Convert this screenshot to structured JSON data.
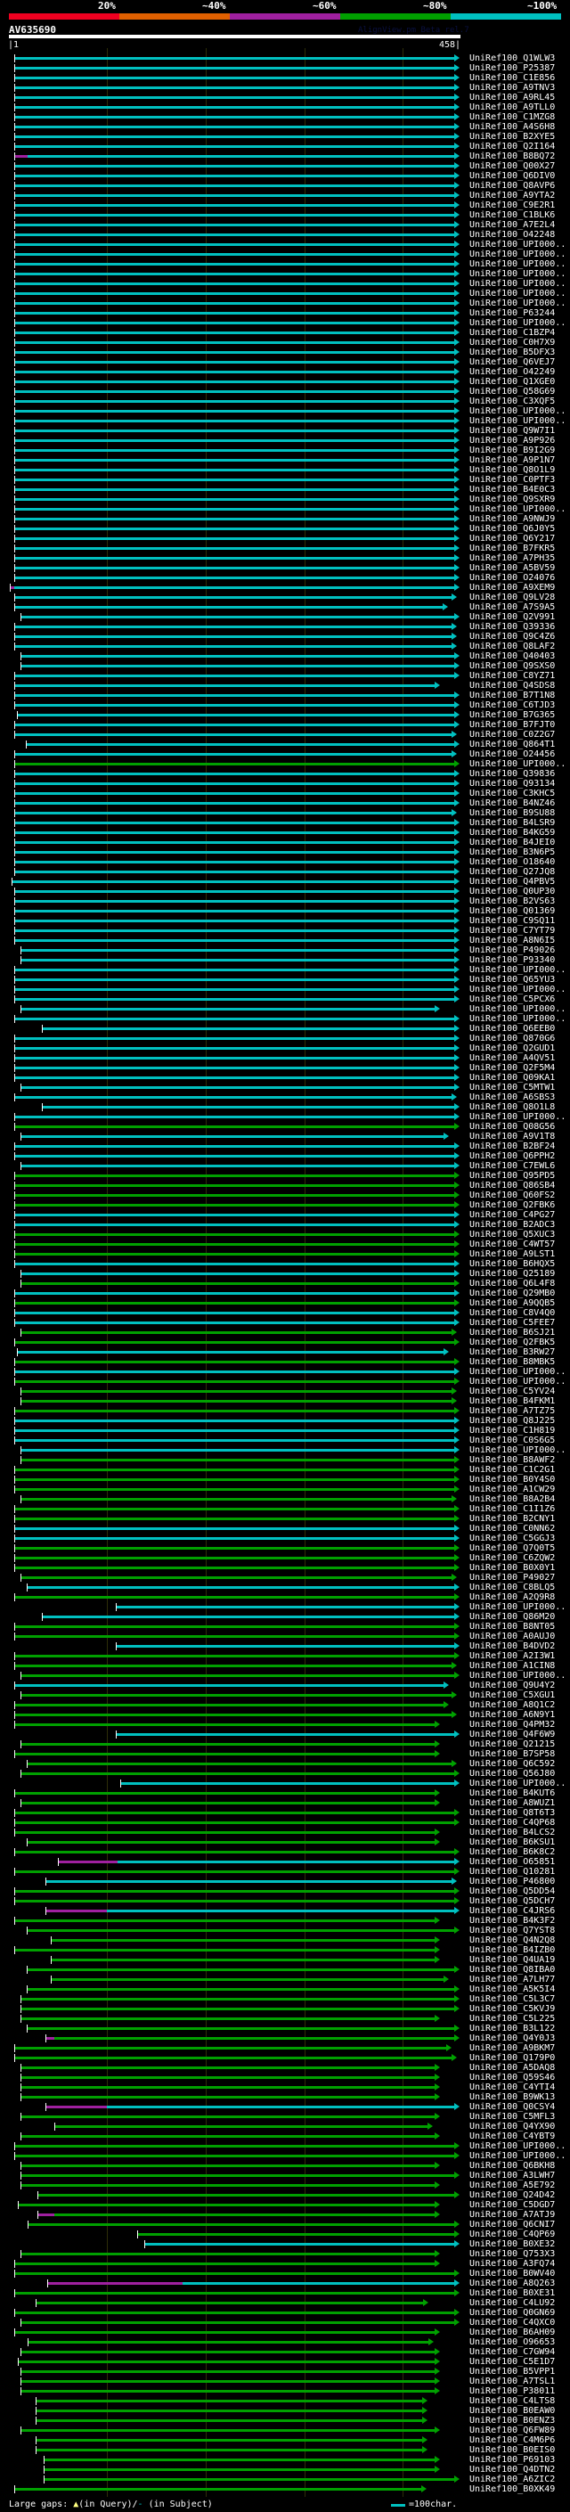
{
  "legend": {
    "percent_labels": [
      "20%",
      "~40%",
      "~60%",
      "~80%",
      "~100%"
    ],
    "colors": [
      "#f00020",
      "#e06000",
      "#a020a0",
      "#00a000",
      "#00c0c0"
    ]
  },
  "header": {
    "query_name": "AV635690",
    "watermark": "AlignView.pm Beta rel.7",
    "start_label": "|1",
    "end_label": "458|",
    "query_length": 458
  },
  "series_colors": {
    "c": "#00c0c0",
    "g": "#00a000",
    "m": "#a020a0"
  },
  "hits": [
    [
      "UniRef100_Q1WLW3",
      "c",
      6,
      452
    ],
    [
      "UniRef100_P25387",
      "c",
      6,
      452
    ],
    [
      "UniRef100_C1E856",
      "c",
      6,
      452
    ],
    [
      "UniRef100_A9TNV3",
      "c",
      6,
      452
    ],
    [
      "UniRef100_A9RL45",
      "c",
      6,
      452
    ],
    [
      "UniRef100_A9TLL0",
      "c",
      6,
      452
    ],
    [
      "UniRef100_C1MZG8",
      "c",
      6,
      452
    ],
    [
      "UniRef100_A4S6H8",
      "c",
      6,
      452
    ],
    [
      "UniRef100_B2XYE5",
      "c",
      6,
      452
    ],
    [
      "UniRef100_Q2I164",
      "c",
      6,
      452
    ],
    [
      "UniRef100_B8BQ72",
      "c",
      6,
      452,
      20
    ],
    [
      "UniRef100_Q00X27",
      "c",
      6,
      452
    ],
    [
      "UniRef100_Q6DIV0",
      "c",
      6,
      452
    ],
    [
      "UniRef100_Q8AVP6",
      "c",
      6,
      452
    ],
    [
      "UniRef100_A9YTA2",
      "c",
      6,
      452
    ],
    [
      "UniRef100_C9E2R1",
      "c",
      6,
      452
    ],
    [
      "UniRef100_C1BLK6",
      "c",
      6,
      452
    ],
    [
      "UniRef100_A7E2L4",
      "c",
      6,
      452
    ],
    [
      "UniRef100_O42248",
      "c",
      6,
      452
    ],
    [
      "UniRef100_UPI000..",
      "c",
      6,
      452
    ],
    [
      "UniRef100_UPI000..",
      "c",
      6,
      452
    ],
    [
      "UniRef100_UPI000..",
      "c",
      6,
      452
    ],
    [
      "UniRef100_UPI000..",
      "c",
      6,
      452
    ],
    [
      "UniRef100_UPI000..",
      "c",
      6,
      452
    ],
    [
      "UniRef100_UPI000..",
      "c",
      6,
      452
    ],
    [
      "UniRef100_UPI000..",
      "c",
      6,
      452
    ],
    [
      "UniRef100_P63244",
      "c",
      6,
      452
    ],
    [
      "UniRef100_UPI000..",
      "c",
      6,
      452
    ],
    [
      "UniRef100_C1BZP4",
      "c",
      6,
      452
    ],
    [
      "UniRef100_C0H7X9",
      "c",
      6,
      452
    ],
    [
      "UniRef100_B5DFX3",
      "c",
      6,
      452
    ],
    [
      "UniRef100_Q6VEJ7",
      "c",
      6,
      452
    ],
    [
      "UniRef100_O42249",
      "c",
      6,
      452
    ],
    [
      "UniRef100_Q1XGE0",
      "c",
      6,
      452
    ],
    [
      "UniRef100_Q58G69",
      "c",
      6,
      452
    ],
    [
      "UniRef100_C3XQF5",
      "c",
      6,
      452
    ],
    [
      "UniRef100_UPI000..",
      "c",
      6,
      452
    ],
    [
      "UniRef100_UPI000..",
      "c",
      6,
      452
    ],
    [
      "UniRef100_Q9W7I1",
      "c",
      6,
      452
    ],
    [
      "UniRef100_A9P926",
      "c",
      6,
      452
    ],
    [
      "UniRef100_B9I2G9",
      "c",
      6,
      452
    ],
    [
      "UniRef100_A9P1N7",
      "c",
      6,
      452
    ],
    [
      "UniRef100_Q8O1L9",
      "c",
      6,
      452
    ],
    [
      "UniRef100_C0PTF3",
      "c",
      6,
      452
    ],
    [
      "UniRef100_B4E0C3",
      "c",
      6,
      452
    ],
    [
      "UniRef100_Q9SXR9",
      "c",
      6,
      452
    ],
    [
      "UniRef100_UPI000..",
      "c",
      6,
      452
    ],
    [
      "UniRef100_A9NWJ9",
      "c",
      6,
      452
    ],
    [
      "UniRef100_Q6J0Y5",
      "c",
      6,
      452
    ],
    [
      "UniRef100_Q6Y217",
      "c",
      6,
      452
    ],
    [
      "UniRef100_B7FKR5",
      "c",
      6,
      452
    ],
    [
      "UniRef100_A7PH35",
      "c",
      6,
      452
    ],
    [
      "UniRef100_A5BV59",
      "c",
      6,
      452
    ],
    [
      "UniRef100_O24076",
      "c",
      6,
      452
    ],
    [
      "UniRef100_A9XEM9",
      "c",
      2,
      452,
      6
    ],
    [
      "UniRef100_Q9LV28",
      "c",
      6,
      449
    ],
    [
      "UniRef100_A7S9A5",
      "c",
      6,
      440
    ],
    [
      "UniRef100_Q2V991",
      "c",
      13,
      452
    ],
    [
      "UniRef100_Q39336",
      "c",
      6,
      449
    ],
    [
      "UniRef100_Q9C4Z6",
      "c",
      6,
      449
    ],
    [
      "UniRef100_Q8LAF2",
      "c",
      6,
      449
    ],
    [
      "UniRef100_Q40403",
      "c",
      13,
      452
    ],
    [
      "UniRef100_Q9SXS0",
      "c",
      13,
      452
    ],
    [
      "UniRef100_C8YZ71",
      "c",
      6,
      452
    ],
    [
      "UniRef100_Q4SDS8",
      "c",
      6,
      432
    ],
    [
      "UniRef100_B7T1N8",
      "c",
      6,
      452
    ],
    [
      "UniRef100_C6TJD3",
      "c",
      6,
      452
    ],
    [
      "UniRef100_B7G365",
      "c",
      9,
      452
    ],
    [
      "UniRef100_B7FJT0",
      "c",
      6,
      452
    ],
    [
      "UniRef100_C0Z2G7",
      "c",
      6,
      449
    ],
    [
      "UniRef100_Q864T1",
      "c",
      18,
      452
    ],
    [
      "UniRef100_O24456",
      "c",
      6,
      449
    ],
    [
      "UniRef100_UPI000..",
      "g",
      6,
      452
    ],
    [
      "UniRef100_Q39836",
      "c",
      6,
      452
    ],
    [
      "UniRef100_Q93134",
      "c",
      6,
      452
    ],
    [
      "UniRef100_C3KHC5",
      "c",
      6,
      452
    ],
    [
      "UniRef100_B4NZ46",
      "c",
      6,
      452
    ],
    [
      "UniRef100_B9SU88",
      "c",
      6,
      449
    ],
    [
      "UniRef100_B4LSR9",
      "c",
      6,
      452
    ],
    [
      "UniRef100_B4KG59",
      "c",
      6,
      452
    ],
    [
      "UniRef100_B4JEI0",
      "c",
      6,
      452
    ],
    [
      "UniRef100_B3N6P5",
      "c",
      6,
      452
    ],
    [
      "UniRef100_O18640",
      "c",
      6,
      452
    ],
    [
      "UniRef100_Q27JQ8",
      "c",
      6,
      452
    ],
    [
      "UniRef100_Q4PBV5",
      "c",
      4,
      452
    ],
    [
      "UniRef100_Q0UP30",
      "c",
      6,
      452
    ],
    [
      "UniRef100_B2VS63",
      "c",
      6,
      452
    ],
    [
      "UniRef100_Q01369",
      "c",
      6,
      452
    ],
    [
      "UniRef100_C9SQ11",
      "c",
      6,
      452
    ],
    [
      "UniRef100_C7YT79",
      "c",
      6,
      452
    ],
    [
      "UniRef100_A8N6I5",
      "c",
      6,
      452
    ],
    [
      "UniRef100_P49026",
      "c",
      13,
      452
    ],
    [
      "UniRef100_P93340",
      "c",
      13,
      452
    ],
    [
      "UniRef100_UPI000..",
      "c",
      6,
      452
    ],
    [
      "UniRef100_Q65YU3",
      "c",
      6,
      452
    ],
    [
      "UniRef100_UPI000..",
      "c",
      6,
      452
    ],
    [
      "UniRef100_C5PCX6",
      "c",
      6,
      452
    ],
    [
      "UniRef100_UPI000..",
      "c",
      13,
      432
    ],
    [
      "UniRef100_UPI000..",
      "c",
      6,
      452
    ],
    [
      "UniRef100_Q6EEB0",
      "c",
      34,
      452
    ],
    [
      "UniRef100_Q870G6",
      "c",
      6,
      452
    ],
    [
      "UniRef100_Q2GUD1",
      "c",
      6,
      452
    ],
    [
      "UniRef100_A4QV51",
      "c",
      6,
      452
    ],
    [
      "UniRef100_Q2F5M4",
      "c",
      6,
      452
    ],
    [
      "UniRef100_Q09KA1",
      "c",
      6,
      452
    ],
    [
      "UniRef100_C5MTW1",
      "c",
      13,
      452
    ],
    [
      "UniRef100_A6SBS3",
      "c",
      6,
      449
    ],
    [
      "UniRef100_Q8O1L8",
      "c",
      34,
      452
    ],
    [
      "UniRef100_UPI000..",
      "c",
      6,
      452
    ],
    [
      "UniRef100_Q08G56",
      "g",
      6,
      452
    ],
    [
      "UniRef100_A9V1T8",
      "c",
      13,
      441
    ],
    [
      "UniRef100_B2BF24",
      "c",
      6,
      452
    ],
    [
      "UniRef100_Q6PPH2",
      "c",
      6,
      452
    ],
    [
      "UniRef100_C7EWL6",
      "c",
      13,
      452
    ],
    [
      "UniRef100_Q95PD5",
      "g",
      6,
      452
    ],
    [
      "UniRef100_Q86SB4",
      "g",
      6,
      452
    ],
    [
      "UniRef100_Q60FS2",
      "g",
      6,
      452
    ],
    [
      "UniRef100_Q2FBK6",
      "g",
      6,
      452
    ],
    [
      "UniRef100_C4PG27",
      "c",
      6,
      452
    ],
    [
      "UniRef100_B2ADC3",
      "c",
      6,
      452
    ],
    [
      "UniRef100_Q5XUC3",
      "g",
      6,
      452
    ],
    [
      "UniRef100_C4WT57",
      "g",
      6,
      452
    ],
    [
      "UniRef100_A9LST1",
      "g",
      6,
      452
    ],
    [
      "UniRef100_B6HQX5",
      "c",
      6,
      452
    ],
    [
      "UniRef100_Q25189",
      "c",
      13,
      452
    ],
    [
      "UniRef100_Q6L4F8",
      "g",
      13,
      452
    ],
    [
      "UniRef100_Q29MB0",
      "c",
      6,
      452
    ],
    [
      "UniRef100_A9QQB5",
      "g",
      6,
      452
    ],
    [
      "UniRef100_C8V4Q0",
      "c",
      6,
      452
    ],
    [
      "UniRef100_C5FEE7",
      "c",
      6,
      452
    ],
    [
      "UniRef100_B6SJ21",
      "g",
      13,
      449
    ],
    [
      "UniRef100_Q2FBK5",
      "g",
      6,
      452
    ],
    [
      "UniRef100_B3RW27",
      "c",
      9,
      441
    ],
    [
      "UniRef100_B8MBK5",
      "g",
      6,
      452
    ],
    [
      "UniRef100_UPI000..",
      "c",
      6,
      452
    ],
    [
      "UniRef100_UPI000..",
      "g",
      6,
      452
    ],
    [
      "UniRef100_C5YV24",
      "g",
      13,
      449
    ],
    [
      "UniRef100_B4FKM1",
      "g",
      13,
      449
    ],
    [
      "UniRef100_A7TZ75",
      "g",
      6,
      452
    ],
    [
      "UniRef100_Q8J225",
      "c",
      6,
      452
    ],
    [
      "UniRef100_C1H819",
      "c",
      6,
      452
    ],
    [
      "UniRef100_C0S6G5",
      "c",
      6,
      452
    ],
    [
      "UniRef100_UPI000..",
      "c",
      13,
      452
    ],
    [
      "UniRef100_B8AWF2",
      "g",
      13,
      452
    ],
    [
      "UniRef100_C1C2G1",
      "g",
      6,
      452
    ],
    [
      "UniRef100_B0Y4S0",
      "g",
      6,
      452
    ],
    [
      "UniRef100_A1CW29",
      "g",
      6,
      452
    ],
    [
      "UniRef100_B8A2B4",
      "g",
      13,
      449
    ],
    [
      "UniRef100_C1I1Z6",
      "g",
      6,
      452
    ],
    [
      "UniRef100_B2CNY1",
      "g",
      6,
      452
    ],
    [
      "UniRef100_C0NN62",
      "c",
      6,
      452
    ],
    [
      "UniRef100_C5GGJ3",
      "c",
      6,
      452
    ],
    [
      "UniRef100_Q7Q0T5",
      "g",
      6,
      452
    ],
    [
      "UniRef100_C6ZQW2",
      "g",
      6,
      452
    ],
    [
      "UniRef100_B0X0Y1",
      "g",
      6,
      452
    ],
    [
      "UniRef100_P49027",
      "g",
      13,
      449
    ],
    [
      "UniRef100_C8BLQ5",
      "c",
      19,
      452
    ],
    [
      "UniRef100_A2Q9R8",
      "g",
      6,
      452
    ],
    [
      "UniRef100_UPI000..",
      "c",
      109,
      452
    ],
    [
      "UniRef100_Q86M20",
      "c",
      34,
      452
    ],
    [
      "UniRef100_B8NT05",
      "g",
      6,
      452
    ],
    [
      "UniRef100_A0AUJ0",
      "g",
      6,
      452
    ],
    [
      "UniRef100_B4DVD2",
      "c",
      109,
      452
    ],
    [
      "UniRef100_A2I3W1",
      "g",
      6,
      452
    ],
    [
      "UniRef100_A1CIN8",
      "g",
      6,
      449
    ],
    [
      "UniRef100_UPI000..",
      "g",
      13,
      452
    ],
    [
      "UniRef100_Q9U4Y2",
      "c",
      6,
      441
    ],
    [
      "UniRef100_C5XGU1",
      "g",
      13,
      449
    ],
    [
      "UniRef100_A8Q1C2",
      "g",
      6,
      441
    ],
    [
      "UniRef100_A6N9Y1",
      "g",
      6,
      449
    ],
    [
      "UniRef100_Q4PM32",
      "g",
      6,
      432
    ],
    [
      "UniRef100_Q4F6W9",
      "c",
      109,
      452
    ],
    [
      "UniRef100_Q21215",
      "g",
      13,
      432
    ],
    [
      "UniRef100_B7SP58",
      "g",
      6,
      432
    ],
    [
      "UniRef100_Q6C592",
      "g",
      19,
      449
    ],
    [
      "UniRef100_Q56J80",
      "g",
      13,
      452
    ],
    [
      "UniRef100_UPI000..",
      "c",
      114,
      452
    ],
    [
      "UniRef100_B4KUT6",
      "g",
      6,
      432
    ],
    [
      "UniRef100_A8WUZ1",
      "g",
      13,
      432
    ],
    [
      "UniRef100_Q8T6T3",
      "g",
      6,
      452
    ],
    [
      "UniRef100_C4QP68",
      "g",
      6,
      452
    ],
    [
      "UniRef100_B4LCS2",
      "g",
      6,
      432
    ],
    [
      "UniRef100_B6KSU1",
      "g",
      19,
      432
    ],
    [
      "UniRef100_B6K8C2",
      "g",
      6,
      452
    ],
    [
      "UniRef100_O65851",
      "c",
      51,
      452,
      111
    ],
    [
      "UniRef100_Q10281",
      "g",
      6,
      452
    ],
    [
      "UniRef100_P46800",
      "c",
      38,
      449
    ],
    [
      "UniRef100_Q5DD54",
      "g",
      6,
      452
    ],
    [
      "UniRef100_Q5DCH7",
      "g",
      6,
      452
    ],
    [
      "UniRef100_C4JRS6",
      "c",
      38,
      452,
      100
    ],
    [
      "UniRef100_B4K3F2",
      "g",
      6,
      432
    ],
    [
      "UniRef100_Q7YST8",
      "g",
      19,
      452
    ],
    [
      "UniRef100_Q4N2Q8",
      "g",
      43,
      432
    ],
    [
      "UniRef100_B4IZB0",
      "g",
      6,
      432
    ],
    [
      "UniRef100_Q4UA19",
      "g",
      43,
      432
    ],
    [
      "UniRef100_Q8IBA0",
      "g",
      19,
      452
    ],
    [
      "UniRef100_A7LH77",
      "g",
      43,
      441
    ],
    [
      "UniRef100_A5K5I4",
      "g",
      19,
      452
    ],
    [
      "UniRef100_C5L3C7",
      "g",
      13,
      452
    ],
    [
      "UniRef100_C5KVJ9",
      "g",
      13,
      452
    ],
    [
      "UniRef100_C5L225",
      "g",
      13,
      432
    ],
    [
      "UniRef100_B3L122",
      "g",
      19,
      452
    ],
    [
      "UniRef100_Q4Y0J3",
      "g",
      38,
      452,
      47
    ],
    [
      "UniRef100_A9BKM7",
      "g",
      6,
      444
    ],
    [
      "UniRef100_Q179P0",
      "g",
      6,
      449
    ],
    [
      "UniRef100_A5DAQ8",
      "g",
      13,
      432
    ],
    [
      "UniRef100_Q59S46",
      "g",
      13,
      432
    ],
    [
      "UniRef100_C4YTI4",
      "g",
      13,
      432
    ],
    [
      "UniRef100_B9WK13",
      "g",
      13,
      432
    ],
    [
      "UniRef100_Q0CSY4",
      "c",
      38,
      452,
      100
    ],
    [
      "UniRef100_C5MFL3",
      "g",
      13,
      432
    ],
    [
      "UniRef100_Q4YX90",
      "g",
      47,
      425
    ],
    [
      "UniRef100_C4YBT9",
      "g",
      13,
      432
    ],
    [
      "UniRef100_UPI000..",
      "g",
      6,
      452
    ],
    [
      "UniRef100_UPI000..",
      "g",
      6,
      452
    ],
    [
      "UniRef100_Q6BKH8",
      "g",
      13,
      432
    ],
    [
      "UniRef100_A3LWH7",
      "g",
      13,
      452
    ],
    [
      "UniRef100_A5E792",
      "g",
      13,
      432
    ],
    [
      "UniRef100_Q24D42",
      "g",
      30,
      452
    ],
    [
      "UniRef100_C5DGD7",
      "g",
      10,
      432
    ],
    [
      "UniRef100_A7ATJ9",
      "g",
      30,
      432,
      47
    ],
    [
      "UniRef100_Q6CNI7",
      "g",
      20,
      452
    ],
    [
      "UniRef100_C4QP69",
      "g",
      131,
      452
    ],
    [
      "UniRef100_B0XE32",
      "c",
      138,
      452
    ],
    [
      "UniRef100_Q753X3",
      "g",
      13,
      432
    ],
    [
      "UniRef100_A3FQ74",
      "g",
      6,
      432
    ],
    [
      "UniRef100_B0WV40",
      "g",
      6,
      452
    ],
    [
      "UniRef100_A8Q263",
      "c",
      40,
      452,
      177
    ],
    [
      "UniRef100_B0XE31",
      "g",
      6,
      452
    ],
    [
      "UniRef100_C4LU92",
      "g",
      28,
      420
    ],
    [
      "UniRef100_Q0GN69",
      "g",
      6,
      452
    ],
    [
      "UniRef100_C4QXC0",
      "g",
      13,
      452
    ],
    [
      "UniRef100_B6AH09",
      "g",
      6,
      432
    ],
    [
      "UniRef100_O96653",
      "g",
      20,
      426
    ],
    [
      "UniRef100_C7GW94",
      "g",
      13,
      432
    ],
    [
      "UniRef100_C5E1D7",
      "g",
      10,
      432
    ],
    [
      "UniRef100_B5VPP1",
      "g",
      13,
      432
    ],
    [
      "UniRef100_A7TSL1",
      "g",
      13,
      432
    ],
    [
      "UniRef100_P38011",
      "g",
      13,
      432
    ],
    [
      "UniRef100_C4LTS8",
      "g",
      28,
      419
    ],
    [
      "UniRef100_B0EAW0",
      "g",
      28,
      419
    ],
    [
      "UniRef100_B0ENZ3",
      "g",
      28,
      419
    ],
    [
      "UniRef100_Q6FW89",
      "g",
      13,
      432
    ],
    [
      "UniRef100_C4M6P6",
      "g",
      28,
      419
    ],
    [
      "UniRef100_B0EIS0",
      "g",
      28,
      419
    ],
    [
      "UniRef100_P69103",
      "g",
      36,
      432
    ],
    [
      "UniRef100_Q4DTN2",
      "g",
      36,
      432
    ],
    [
      "UniRef100_A6ZIC2",
      "g",
      36,
      452
    ],
    [
      "UniRef100_B0XK49",
      "g",
      6,
      418
    ]
  ],
  "footer": {
    "large_gaps_label": "Large gaps:",
    "query_gap_symbol": "▲",
    "query_gap_text": "(in Query)/",
    "subject_gap_symbol": "-",
    "subject_gap_text": " (in Subject)",
    "scale_text": "=100char."
  }
}
